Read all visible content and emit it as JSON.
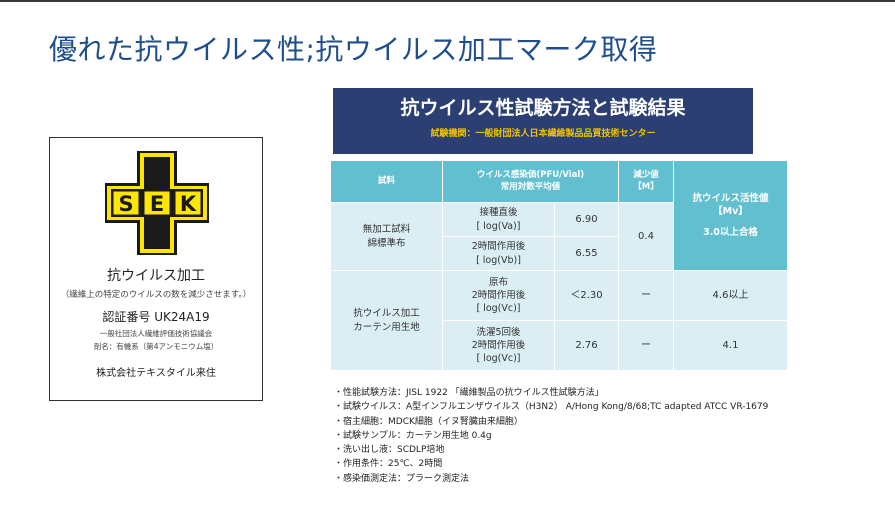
{
  "page": {
    "title": "優れた抗ウイルス性;抗ウイルス加工マーク取得"
  },
  "certificate": {
    "logo_text": "SEK",
    "logo_colors": {
      "fill": "#ffe600",
      "outline": "#1a1a1a"
    },
    "name": "抗ウイルス加工",
    "description": "（繊維上の特定のウイルスの数を減少させます。）",
    "certification_number": "認証番号 UK24A19",
    "organization": "一般社団法人繊維評価技術協議会",
    "agent": "剤名：有機系（第4アンモニウム塩）",
    "company": "株式会社テキスタイル来住"
  },
  "test": {
    "title": "抗ウイルス性試験方法と試験結果",
    "institution": "試験機関：一般財団法人日本繊維製品品質技術センター",
    "colors": {
      "header_bg": "#2b3f73",
      "subtitle": "#f2c100",
      "table_header": "#62bfd0",
      "table_cell": "#daeef3"
    },
    "table": {
      "headers": {
        "sample": "試料",
        "titer_line1": "ウイルス感染価(PFU/Vial)",
        "titer_line2": "常用対数平均値",
        "reduction_line1": "減少値",
        "reduction_line2": "【M】",
        "activity_line1": "抗ウイルス活性値",
        "activity_line2": "【Mv】"
      },
      "group1": {
        "sample_line1": "無加工試料",
        "sample_line2": "綿標準布",
        "row1_cond_line1": "接種直後",
        "row1_cond_line2": "[ log(Va)]",
        "row1_value": "6.90",
        "row2_cond_line1": "2時間作用後",
        "row2_cond_line2": "[ log(Vb)]",
        "row2_value": "6.55",
        "reduction": "0.4",
        "activity_criterion": "3.0以上合格"
      },
      "group2": {
        "sample_line1": "抗ウイルス加工",
        "sample_line2": "カーテン用生地",
        "row1_cond_line1": "原布",
        "row1_cond_line2": "2時間作用後",
        "row1_cond_line3": "[ log(Vc)]",
        "row1_value": "＜2.30",
        "row1_reduction": "ー",
        "row1_activity": "4.6以上",
        "row2_cond_line1": "洗濯5回後",
        "row2_cond_line2": "2時間作用後",
        "row2_cond_line3": "[ log(Vc)]",
        "row2_value": "2.76",
        "row2_reduction": "ー",
        "row2_activity": "4.1"
      }
    },
    "notes": [
      "・性能試験方法：JISL 1922 「繊維製品の抗ウイルス性試験方法」",
      "・試験ウイルス：A型インフルエンザウイルス（H3N2） A/Hong Kong/8/68;TC adapted ATCC VR-1679",
      "・宿主細胞：MDCK細胞（イヌ腎臓由来細胞）",
      "・試験サンプル：カーテン用生地 0.4g",
      "・洗い出し液：SCDLP培地",
      "・作用条件：25℃、2時間",
      "・感染価測定法：プラーク測定法"
    ]
  }
}
